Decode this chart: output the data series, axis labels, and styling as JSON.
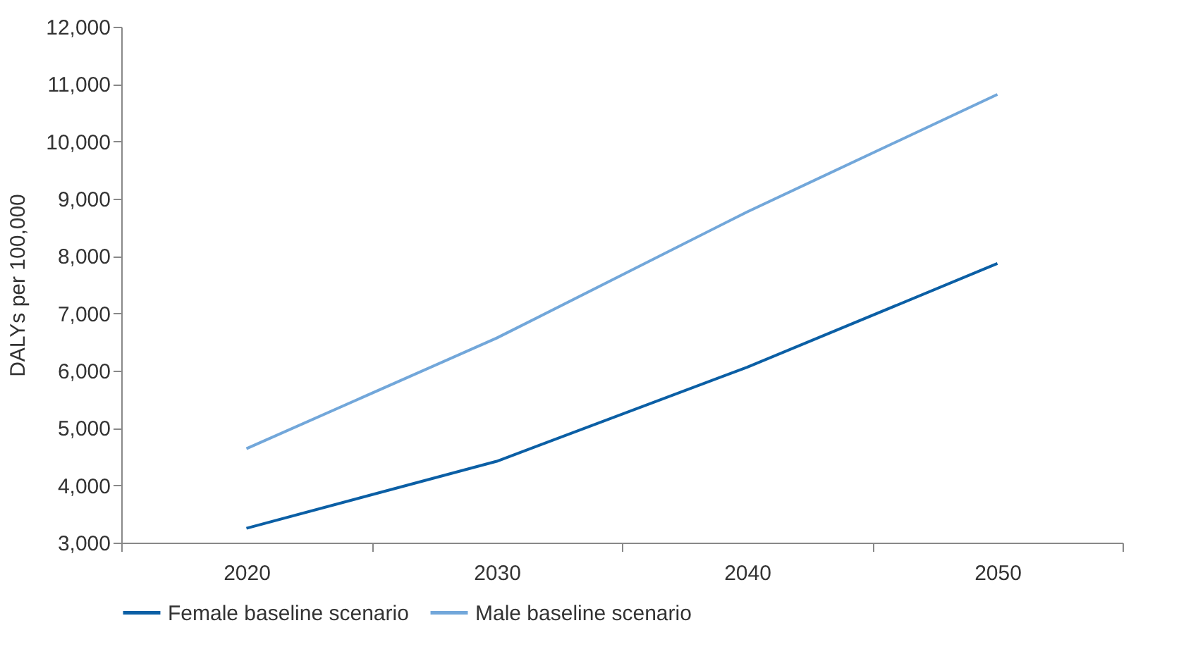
{
  "chart_data": {
    "type": "line",
    "ylabel": "DALYs per 100,000",
    "categories": [
      "2020",
      "2030",
      "2040",
      "2050"
    ],
    "series": [
      {
        "name": "Female baseline scenario",
        "color": "#0b5fa5",
        "values": [
          3250,
          4420,
          6060,
          7870
        ]
      },
      {
        "name": "Male baseline scenario",
        "color": "#72a7da",
        "values": [
          4640,
          6570,
          8770,
          10820
        ]
      }
    ],
    "ylim": [
      3000,
      12000
    ],
    "yticks": [
      {
        "value": 3000,
        "label": "3,000"
      },
      {
        "value": 4000,
        "label": "4,000"
      },
      {
        "value": 5000,
        "label": "5,000"
      },
      {
        "value": 6000,
        "label": "6,000"
      },
      {
        "value": 7000,
        "label": "7,000"
      },
      {
        "value": 8000,
        "label": "8,000"
      },
      {
        "value": 9000,
        "label": "9,000"
      },
      {
        "value": 10000,
        "label": "10,000"
      },
      {
        "value": 11000,
        "label": "11,000"
      },
      {
        "value": 12000,
        "label": "12,000"
      }
    ],
    "grid": false,
    "legend": "bottom",
    "marker": "none",
    "line_style": "solid"
  }
}
